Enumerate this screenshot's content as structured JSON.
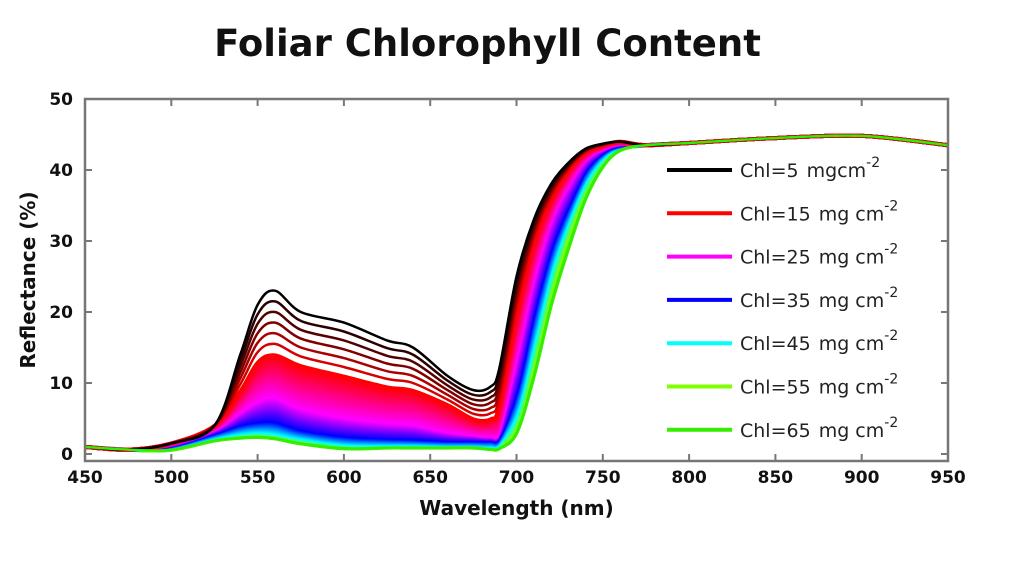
{
  "chart_data": {
    "type": "line",
    "title": "Foliar Chlorophyll Content",
    "xlabel": "Wavelength (nm)",
    "ylabel": "Reflectance (%)",
    "xlim": [
      450,
      950
    ],
    "ylim": [
      -1,
      50
    ],
    "xticks": [
      "450",
      "500",
      "550",
      "600",
      "650",
      "700",
      "750",
      "800",
      "850",
      "900",
      "950"
    ],
    "yticks": [
      "0",
      "10",
      "20",
      "30",
      "40",
      "50"
    ],
    "grid": false,
    "legend_position": "right",
    "x": [
      450,
      475,
      500,
      525,
      540,
      550,
      560,
      575,
      600,
      625,
      640,
      660,
      675,
      685,
      690,
      700,
      710,
      720,
      730,
      740,
      750,
      760,
      775,
      800,
      850,
      900,
      950
    ],
    "series": [
      {
        "name": "Chl=5",
        "unit": "mgcm",
        "exp": "-2",
        "color": "#000000",
        "values": [
          1,
          0.6,
          1.5,
          4,
          14,
          21,
          23,
          20,
          18.5,
          16,
          15,
          11,
          9,
          9.5,
          12,
          25,
          33,
          38,
          41,
          43,
          43.7,
          44,
          43.5,
          43.8,
          44.5,
          44.8,
          43.5
        ]
      },
      {
        "name": "Chl=15",
        "unit": "mg cm",
        "exp": "-2",
        "color": "#ff0000",
        "values": [
          1,
          0.6,
          1.5,
          4,
          9,
          13,
          14,
          12.5,
          11,
          9.5,
          9,
          7,
          5,
          5,
          7,
          20,
          30,
          36,
          40,
          42.5,
          43.5,
          44,
          43.5,
          43.8,
          44.5,
          44.8,
          43.5
        ]
      },
      {
        "name": "Chl=25",
        "unit": "mg cm",
        "exp": "-2",
        "color": "#ff00ff",
        "values": [
          1,
          0.6,
          1.4,
          3.5,
          6,
          7.5,
          8,
          6.5,
          5.2,
          4.5,
          4.2,
          3.2,
          2.8,
          2.6,
          3.5,
          14,
          25,
          33,
          38,
          41.5,
          43,
          43.7,
          43.5,
          43.8,
          44.5,
          44.8,
          43.5
        ]
      },
      {
        "name": "Chl=35",
        "unit": "mg cm",
        "exp": "-2",
        "color": "#0000ff",
        "values": [
          1,
          0.6,
          1.2,
          3,
          4.2,
          4.6,
          4.6,
          3.5,
          2.6,
          2.3,
          2.2,
          2,
          2,
          2,
          2.5,
          9,
          20,
          29,
          35,
          40,
          42.5,
          43.5,
          43.5,
          43.8,
          44.5,
          44.8,
          43.5
        ]
      },
      {
        "name": "Chl=45",
        "unit": "mg cm",
        "exp": "-2",
        "color": "#00ffff",
        "values": [
          1,
          0.6,
          1,
          2.4,
          3,
          3.2,
          3,
          2.3,
          1.5,
          1.4,
          1.4,
          1.3,
          1.3,
          1.2,
          1.6,
          6,
          16,
          26,
          33,
          38.5,
          41.8,
          43.2,
          43.5,
          43.8,
          44.5,
          44.8,
          43.5
        ]
      },
      {
        "name": "Chl=55",
        "unit": "mg cm",
        "exp": "-2",
        "color": "#80ff00",
        "values": [
          1,
          0.6,
          0.8,
          2.1,
          2.6,
          2.7,
          2.5,
          1.8,
          1.1,
          1.1,
          1.1,
          1.1,
          1.1,
          1,
          1.1,
          4,
          13,
          23,
          31,
          37,
          41,
          43,
          43.5,
          43.8,
          44.5,
          44.8,
          43.5
        ]
      },
      {
        "name": "Chl=65",
        "unit": "mg cm",
        "exp": "-2",
        "color": "#33ee00",
        "values": [
          1,
          0.6,
          0.6,
          1.9,
          2.3,
          2.4,
          2.2,
          1.5,
          0.8,
          0.9,
          0.9,
          0.9,
          0.9,
          0.7,
          0.8,
          3,
          11,
          21,
          29,
          36,
          40.5,
          42.8,
          43.5,
          43.8,
          44.5,
          44.8,
          43.5
        ]
      }
    ]
  }
}
